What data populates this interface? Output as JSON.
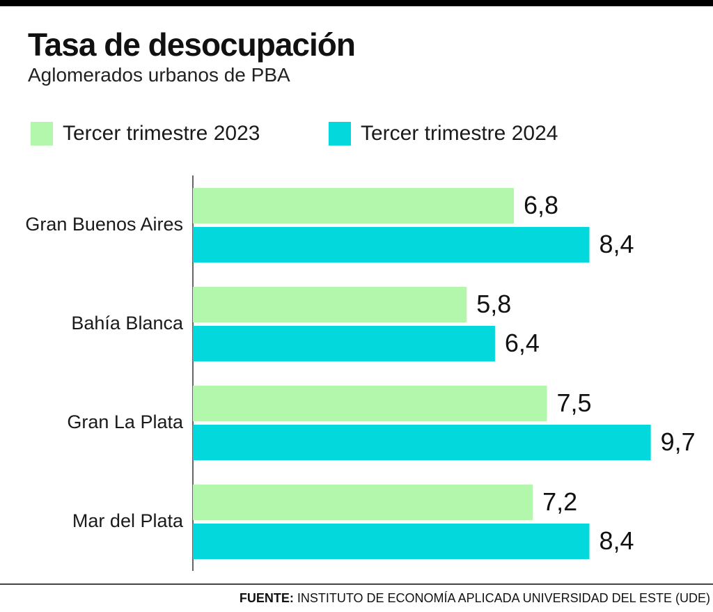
{
  "title": "Tasa de desocupación",
  "subtitle": "Aglomerados urbanos de PBA",
  "source_label": "FUENTE:",
  "source_text": "INSTITUTO DE ECONOMÍA APLICADA UNIVERSIDAD DEL ESTE (UDE)",
  "colors": {
    "series_2023": "#b3f7ac",
    "series_2024": "#03d9dc"
  },
  "chart_data": {
    "type": "bar",
    "orientation": "horizontal",
    "title": "Tasa de desocupación",
    "subtitle": "Aglomerados urbanos de PBA",
    "categories": [
      "Gran Buenos Aires",
      "Bahía Blanca",
      "Gran La Plata",
      "Mar del Plata"
    ],
    "series": [
      {
        "name": "Tercer trimestre 2023",
        "values": [
          6.8,
          5.8,
          7.5,
          7.2
        ],
        "labels": [
          "6,8",
          "5,8",
          "7,5",
          "7,2"
        ]
      },
      {
        "name": "Tercer trimestre 2024",
        "values": [
          8.4,
          6.4,
          9.7,
          8.4
        ],
        "labels": [
          "8,4",
          "6,4",
          "9,7",
          "8,4"
        ]
      }
    ],
    "xlim": [
      0,
      10
    ],
    "legend_position": "top-left",
    "grid": false
  }
}
